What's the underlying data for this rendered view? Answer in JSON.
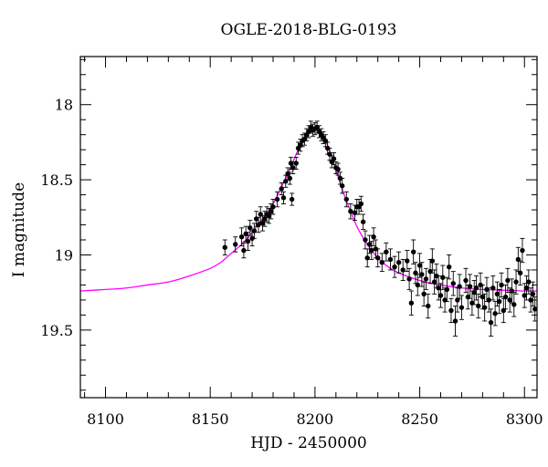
{
  "chart_data": {
    "type": "scatter",
    "title": "OGLE-2018-BLG-0193",
    "xlabel": "HJD - 2450000",
    "ylabel": "I magnitude",
    "xlim": [
      8088,
      8306
    ],
    "ylim": [
      19.95,
      17.68
    ],
    "y_inverted": true,
    "grid": false,
    "legend": "none",
    "x_ticks_major": [
      8100,
      8150,
      8200,
      8250,
      8300
    ],
    "x_tick_labels": [
      "8100",
      "8150",
      "8200",
      "8250",
      "8300"
    ],
    "y_ticks_major": [
      18,
      18.5,
      19,
      19.5
    ],
    "y_tick_labels": [
      "18",
      "18.5",
      "19",
      "19.5"
    ],
    "colors": {
      "data": "#000000",
      "model": "#ff00ff"
    },
    "model": {
      "name": "",
      "color": "#ff00ff",
      "x": [
        8088,
        8100,
        8110,
        8120,
        8130,
        8140,
        8150,
        8155,
        8160,
        8165,
        8170,
        8175,
        8180,
        8185,
        8188,
        8191,
        8194,
        8197,
        8200,
        8203,
        8206,
        8209,
        8212,
        8215,
        8220,
        8225,
        8230,
        8235,
        8240,
        8250,
        8260,
        8270,
        8280,
        8290,
        8300,
        8306
      ],
      "y": [
        19.24,
        19.23,
        19.22,
        19.2,
        19.18,
        19.14,
        19.09,
        19.05,
        18.99,
        18.93,
        18.85,
        18.76,
        18.66,
        18.52,
        18.43,
        18.33,
        18.24,
        18.18,
        18.16,
        18.19,
        18.27,
        18.39,
        18.52,
        18.64,
        18.81,
        18.93,
        19.02,
        19.08,
        19.12,
        19.17,
        19.2,
        19.22,
        19.23,
        19.235,
        19.24,
        19.24
      ]
    },
    "series": [
      {
        "name": "",
        "color": "#000000",
        "points": [
          [
            8157,
            18.95,
            0.05
          ],
          [
            8162,
            18.93,
            0.05
          ],
          [
            8165,
            18.88,
            0.06
          ],
          [
            8166,
            18.97,
            0.05
          ],
          [
            8167,
            18.86,
            0.05
          ],
          [
            8168,
            18.91,
            0.06
          ],
          [
            8169,
            18.82,
            0.05
          ],
          [
            8170,
            18.89,
            0.05
          ],
          [
            8171,
            18.84,
            0.05
          ],
          [
            8172,
            18.76,
            0.05
          ],
          [
            8173,
            18.8,
            0.05
          ],
          [
            8174,
            18.73,
            0.05
          ],
          [
            8175,
            18.79,
            0.05
          ],
          [
            8176,
            18.76,
            0.05
          ],
          [
            8177,
            18.73,
            0.05
          ],
          [
            8178,
            18.74,
            0.05
          ],
          [
            8179,
            18.71,
            0.05
          ],
          [
            8180,
            18.68,
            0.05
          ],
          [
            8182,
            18.63,
            0.05
          ],
          [
            8184,
            18.56,
            0.04
          ],
          [
            8185,
            18.62,
            0.04
          ],
          [
            8186,
            18.51,
            0.04
          ],
          [
            8187,
            18.46,
            0.04
          ],
          [
            8188,
            18.49,
            0.04
          ],
          [
            8188.5,
            18.39,
            0.04
          ],
          [
            8189,
            18.63,
            0.04
          ],
          [
            8189.5,
            18.42,
            0.04
          ],
          [
            8191,
            18.39,
            0.04
          ],
          [
            8192,
            18.29,
            0.04
          ],
          [
            8193,
            18.27,
            0.04
          ],
          [
            8194,
            18.24,
            0.04
          ],
          [
            8195,
            18.23,
            0.04
          ],
          [
            8196,
            18.2,
            0.04
          ],
          [
            8197,
            18.18,
            0.04
          ],
          [
            8198,
            18.15,
            0.04
          ],
          [
            8199,
            18.17,
            0.04
          ],
          [
            8200,
            18.16,
            0.04
          ],
          [
            8201,
            18.15,
            0.04
          ],
          [
            8202,
            18.18,
            0.04
          ],
          [
            8203,
            18.2,
            0.04
          ],
          [
            8204,
            18.22,
            0.04
          ],
          [
            8205,
            18.24,
            0.04
          ],
          [
            8206,
            18.29,
            0.04
          ],
          [
            8207,
            18.33,
            0.04
          ],
          [
            8208,
            18.38,
            0.04
          ],
          [
            8209,
            18.36,
            0.04
          ],
          [
            8210,
            18.42,
            0.04
          ],
          [
            8211,
            18.43,
            0.04
          ],
          [
            8212,
            18.49,
            0.04
          ],
          [
            8213,
            18.54,
            0.05
          ],
          [
            8215,
            18.63,
            0.05
          ],
          [
            8217,
            18.71,
            0.05
          ],
          [
            8219,
            18.72,
            0.05
          ],
          [
            8220,
            18.68,
            0.05
          ],
          [
            8221,
            18.68,
            0.05
          ],
          [
            8222,
            18.66,
            0.05
          ],
          [
            8223,
            18.78,
            0.05
          ],
          [
            8224,
            18.9,
            0.06
          ],
          [
            8225,
            19.02,
            0.06
          ],
          [
            8226,
            18.93,
            0.06
          ],
          [
            8227,
            18.97,
            0.06
          ],
          [
            8228,
            18.88,
            0.06
          ],
          [
            8229,
            18.96,
            0.06
          ],
          [
            8230,
            19.02,
            0.06
          ],
          [
            8232,
            19.05,
            0.06
          ],
          [
            8234,
            18.98,
            0.06
          ],
          [
            8236,
            19.03,
            0.07
          ],
          [
            8238,
            19.08,
            0.07
          ],
          [
            8240,
            19.05,
            0.07
          ],
          [
            8242,
            19.1,
            0.07
          ],
          [
            8244,
            19.04,
            0.07
          ],
          [
            8245,
            19.16,
            0.07
          ],
          [
            8246,
            19.32,
            0.08
          ],
          [
            8247,
            18.98,
            0.08
          ],
          [
            8248,
            19.12,
            0.07
          ],
          [
            8249,
            19.2,
            0.07
          ],
          [
            8250,
            19.07,
            0.08
          ],
          [
            8251,
            19.13,
            0.08
          ],
          [
            8252,
            19.26,
            0.08
          ],
          [
            8253,
            19.16,
            0.07
          ],
          [
            8254,
            19.34,
            0.08
          ],
          [
            8255,
            19.11,
            0.08
          ],
          [
            8256,
            19.04,
            0.08
          ],
          [
            8257,
            19.18,
            0.08
          ],
          [
            8258,
            19.14,
            0.08
          ],
          [
            8259,
            19.22,
            0.08
          ],
          [
            8260,
            19.27,
            0.08
          ],
          [
            8261,
            19.15,
            0.08
          ],
          [
            8262,
            19.3,
            0.08
          ],
          [
            8263,
            19.23,
            0.08
          ],
          [
            8264,
            19.08,
            0.08
          ],
          [
            8265,
            19.37,
            0.08
          ],
          [
            8266,
            19.19,
            0.08
          ],
          [
            8267,
            19.44,
            0.1
          ],
          [
            8268,
            19.3,
            0.08
          ],
          [
            8269,
            19.21,
            0.08
          ],
          [
            8270,
            19.35,
            0.08
          ],
          [
            8272,
            19.17,
            0.08
          ],
          [
            8273,
            19.28,
            0.08
          ],
          [
            8274,
            19.21,
            0.08
          ],
          [
            8275,
            19.32,
            0.08
          ],
          [
            8276,
            19.25,
            0.08
          ],
          [
            8277,
            19.22,
            0.08
          ],
          [
            8278,
            19.34,
            0.08
          ],
          [
            8279,
            19.2,
            0.08
          ],
          [
            8280,
            19.28,
            0.08
          ],
          [
            8281,
            19.35,
            0.09
          ],
          [
            8282,
            19.23,
            0.08
          ],
          [
            8283,
            19.3,
            0.08
          ],
          [
            8284,
            19.45,
            0.09
          ],
          [
            8285,
            19.22,
            0.08
          ],
          [
            8286,
            19.39,
            0.08
          ],
          [
            8287,
            19.26,
            0.08
          ],
          [
            8288,
            19.31,
            0.08
          ],
          [
            8289,
            19.2,
            0.08
          ],
          [
            8290,
            19.37,
            0.08
          ],
          [
            8291,
            19.28,
            0.08
          ],
          [
            8292,
            19.17,
            0.08
          ],
          [
            8293,
            19.3,
            0.08
          ],
          [
            8294,
            19.24,
            0.08
          ],
          [
            8295,
            19.33,
            0.08
          ],
          [
            8296,
            19.18,
            0.08
          ],
          [
            8297,
            19.03,
            0.08
          ],
          [
            8298,
            19.12,
            0.08
          ],
          [
            8299,
            18.97,
            0.08
          ],
          [
            8300,
            19.27,
            0.08
          ],
          [
            8301,
            19.22,
            0.08
          ],
          [
            8302,
            19.18,
            0.08
          ],
          [
            8303,
            19.3,
            0.08
          ],
          [
            8304,
            19.26,
            0.08
          ],
          [
            8305,
            19.36,
            0.08
          ]
        ]
      }
    ]
  }
}
